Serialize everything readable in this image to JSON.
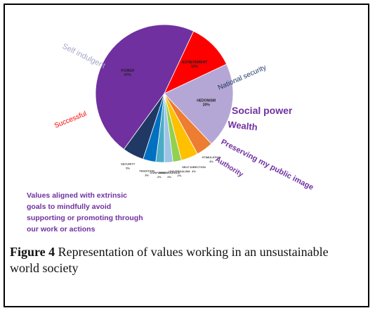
{
  "figure": {
    "label": "Figure 4",
    "text": " Representation of values working in an unsustainable world society"
  },
  "chart_data": {
    "type": "pie",
    "slices": [
      {
        "label": "POWER",
        "value": 47,
        "color": "#7030a0"
      },
      {
        "label": "ACHIEVEMENT",
        "value": 11,
        "color": "#ff0000"
      },
      {
        "label": "HEDONISM",
        "value": 20,
        "color": "#b4a7d6"
      },
      {
        "label": "STIMULATION",
        "value": 4,
        "color": "#ed7d31"
      },
      {
        "label": "SELF-DIRECTION",
        "value": 4,
        "color": "#ffc000"
      },
      {
        "label": "UNIVERSALISM",
        "value": 2,
        "color": "#92d050"
      },
      {
        "label": "BENEVOLENCE",
        "value": 2,
        "color": "#9dc3e6"
      },
      {
        "label": "CONFORMITY",
        "value": 2,
        "color": "#4bacc6"
      },
      {
        "label": "TRADITION",
        "value": 3,
        "color": "#0070c0"
      },
      {
        "label": "SECURITY",
        "value": 5,
        "color": "#1f3864"
      }
    ],
    "annotations": {
      "self_indulgent": "Self indulgent",
      "successful": "Successful",
      "national_security": "National security",
      "social_power": "Social power",
      "wealth": "Wealth",
      "public_image": "Preserving my public image",
      "authority": "Authority"
    },
    "note_lines": [
      "Values aligned with extrinsic",
      "goals to mindfully avoid",
      "supporting or promoting through",
      "our work or actions"
    ]
  }
}
